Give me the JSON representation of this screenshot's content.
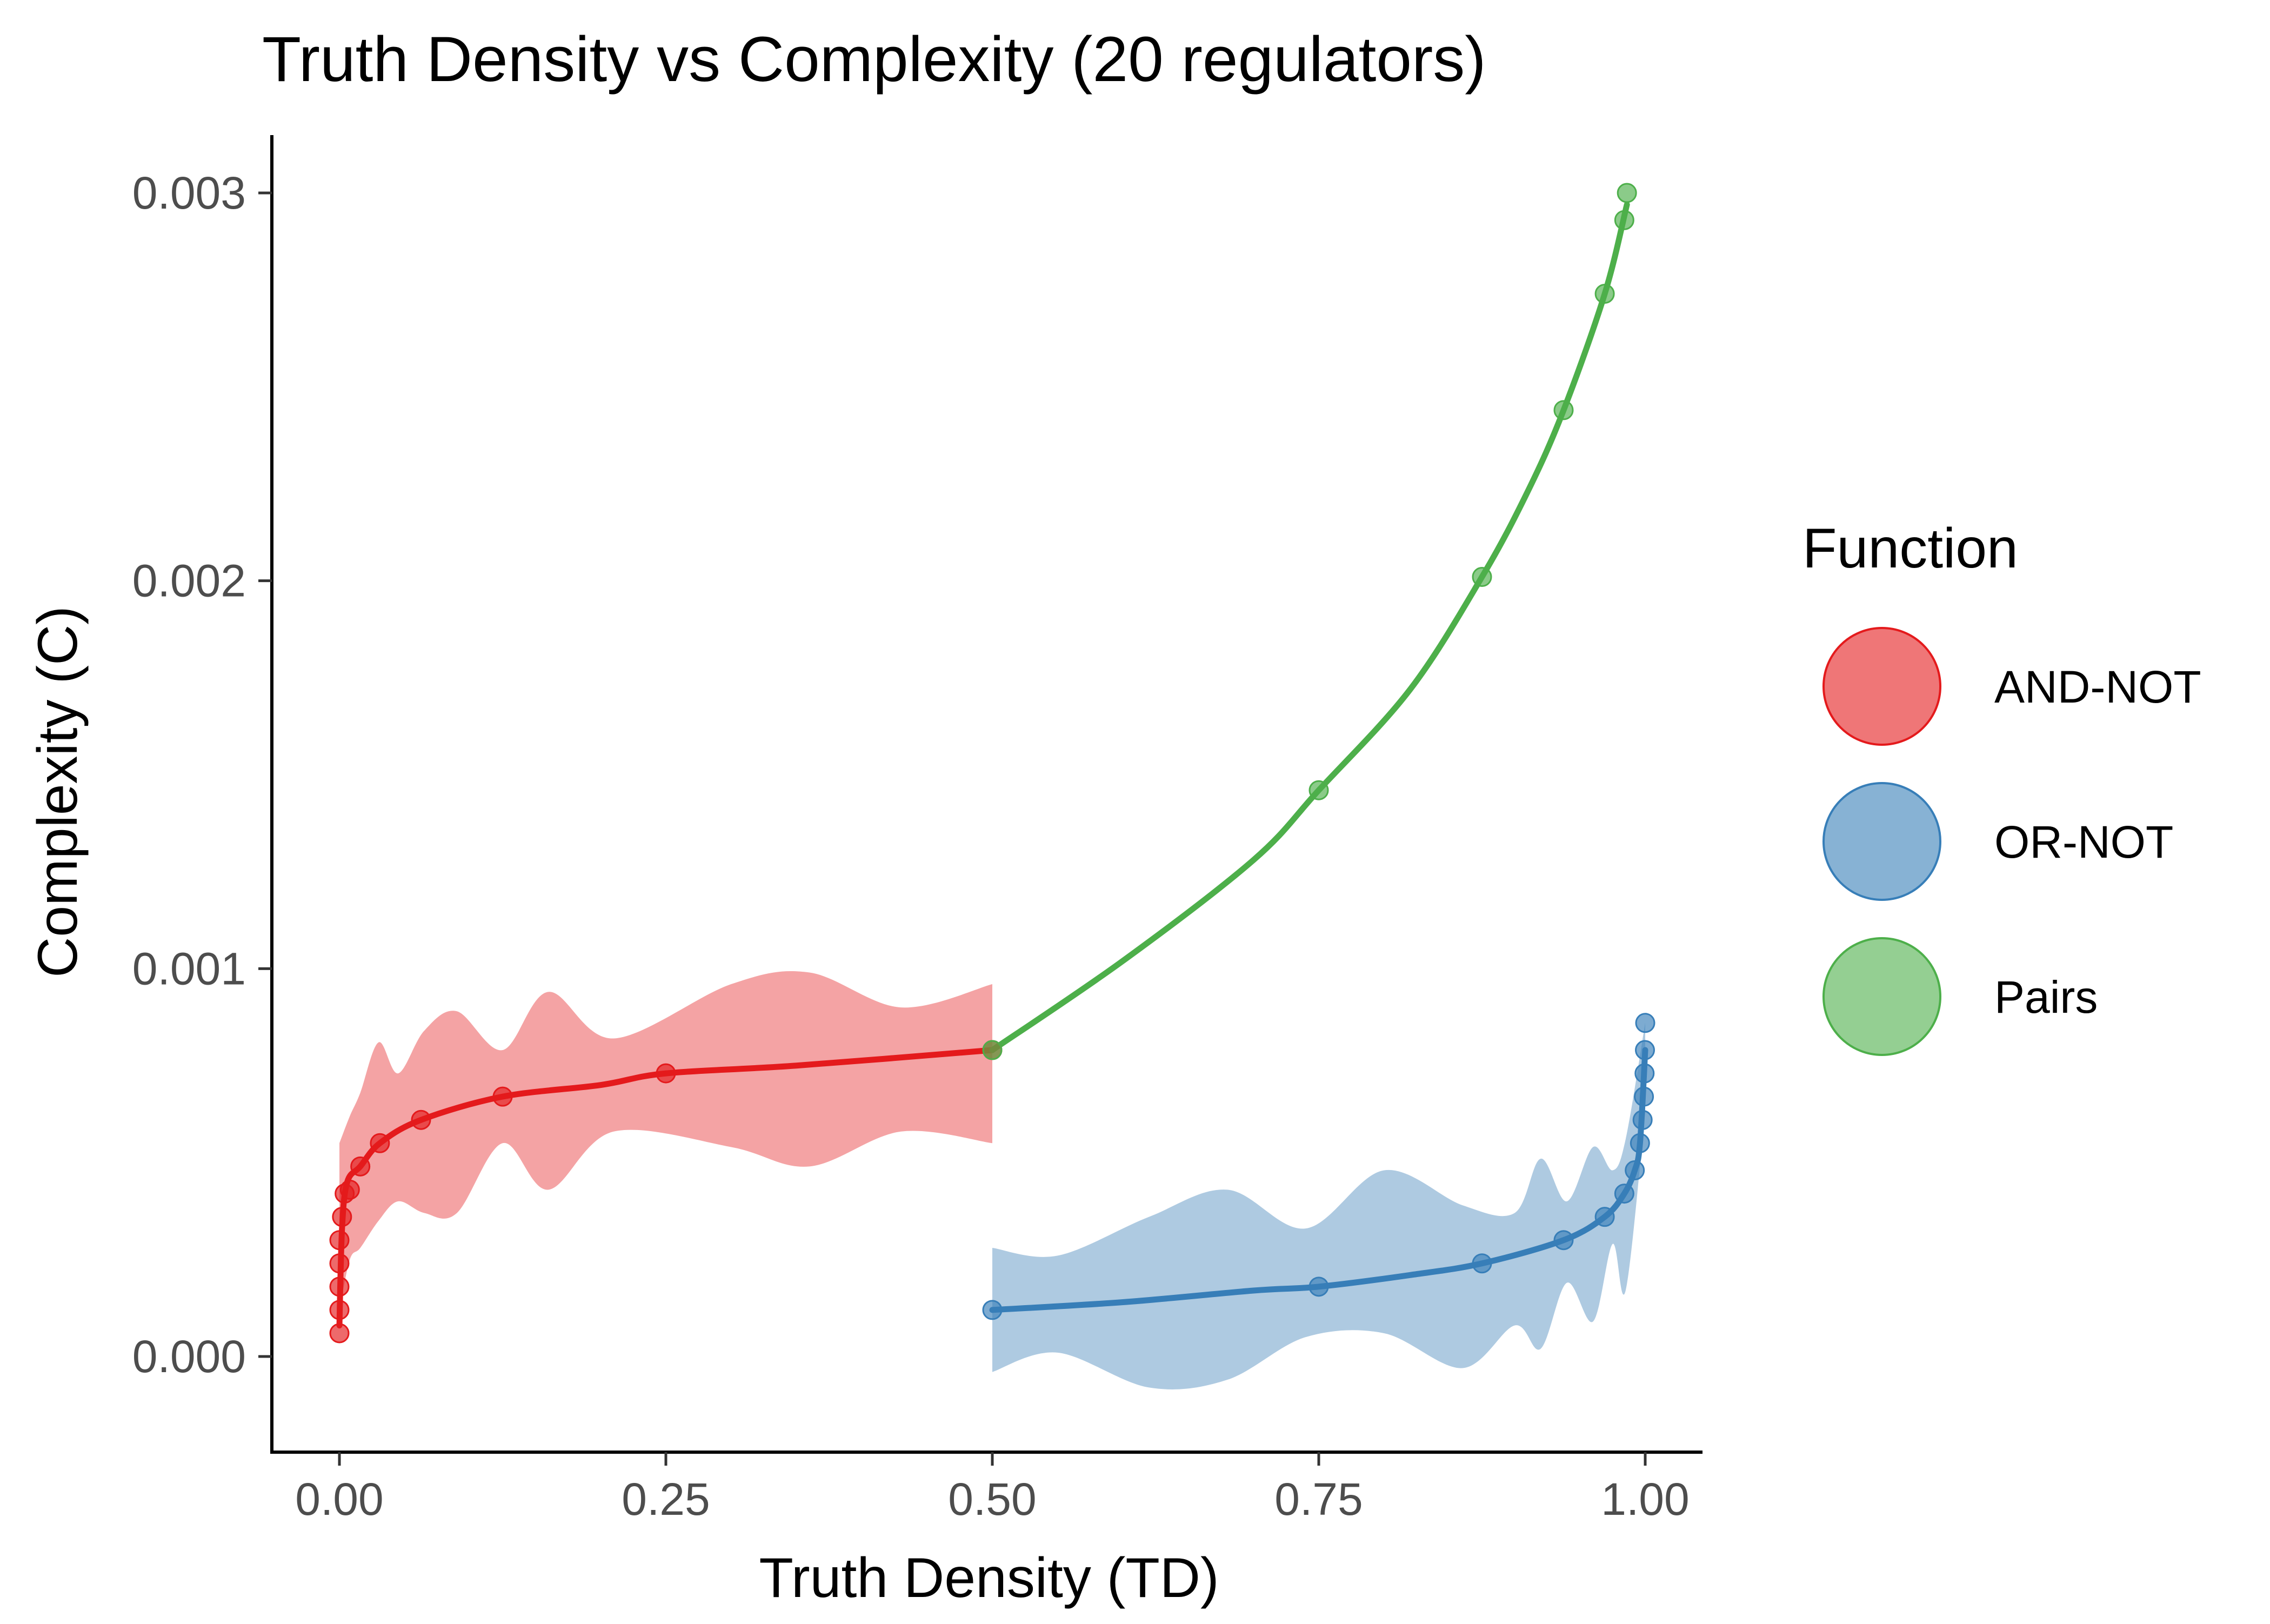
{
  "chart_data": {
    "type": "line",
    "title": "Truth Density vs Complexity (20 regulators)",
    "xlabel": "Truth Density (TD)",
    "ylabel": "Complexity (C)",
    "xlim": [
      -0.05,
      1.05
    ],
    "ylim": [
      -0.00025,
      0.00315
    ],
    "x_ticks": [
      0.0,
      0.25,
      0.5,
      0.75,
      1.0
    ],
    "x_tick_labels": [
      "0.00",
      "0.25",
      "0.50",
      "0.75",
      "1.00"
    ],
    "y_ticks": [
      0.0,
      0.001,
      0.002,
      0.003
    ],
    "y_tick_labels": [
      "0.000",
      "0.001",
      "0.002",
      "0.003"
    ],
    "grid": false,
    "legend": {
      "title": "Function",
      "placement": "right",
      "entries": [
        "AND-NOT",
        "OR-NOT",
        "Pairs"
      ]
    },
    "series": [
      {
        "name": "AND-NOT",
        "color": "#e41a1c",
        "band_color": "#f4a3a4",
        "points": [
          [
            0.0,
            6e-05
          ],
          [
            0.0,
            0.00012
          ],
          [
            0.0,
            0.00018
          ],
          [
            0.0,
            0.00024
          ],
          [
            0.0,
            0.0003
          ],
          [
            0.002,
            0.00036
          ],
          [
            0.004,
            0.00042
          ],
          [
            0.008,
            0.00043
          ],
          [
            0.016,
            0.00049
          ],
          [
            0.031,
            0.00055
          ],
          [
            0.0625,
            0.00061
          ],
          [
            0.125,
            0.00067
          ],
          [
            0.25,
            0.00073
          ],
          [
            0.5,
            0.00079
          ]
        ],
        "smooth": [
          [
            0.0,
            8e-05
          ],
          [
            0.002,
            0.00033
          ],
          [
            0.006,
            0.00045
          ],
          [
            0.016,
            0.00049
          ],
          [
            0.031,
            0.00055
          ],
          [
            0.0625,
            0.00061
          ],
          [
            0.125,
            0.00067
          ],
          [
            0.2,
            0.0007
          ],
          [
            0.25,
            0.00073
          ],
          [
            0.35,
            0.00075
          ],
          [
            0.5,
            0.00079
          ]
        ],
        "band": [
          [
            0.0,
            0.00012,
            0.00055
          ],
          [
            0.008,
            0.00025,
            0.00062
          ],
          [
            0.016,
            0.00028,
            0.00068
          ],
          [
            0.03,
            0.00035,
            0.00081
          ],
          [
            0.045,
            0.0004,
            0.00073
          ],
          [
            0.065,
            0.00037,
            0.00084
          ],
          [
            0.09,
            0.00037,
            0.00089
          ],
          [
            0.125,
            0.00055,
            0.00079
          ],
          [
            0.16,
            0.00043,
            0.00094
          ],
          [
            0.21,
            0.00058,
            0.00082
          ],
          [
            0.3,
            0.00054,
            0.00096
          ],
          [
            0.36,
            0.00049,
            0.00099
          ],
          [
            0.43,
            0.00058,
            0.0009
          ],
          [
            0.5,
            0.00055,
            0.00096
          ]
        ]
      },
      {
        "name": "OR-NOT",
        "color": "#377eb8",
        "band_color": "#aecae1",
        "points": [
          [
            0.5,
            0.00012
          ],
          [
            0.75,
            0.00018
          ],
          [
            0.875,
            0.00024
          ],
          [
            0.9375,
            0.0003
          ],
          [
            0.969,
            0.00036
          ],
          [
            0.984,
            0.00042
          ],
          [
            0.992,
            0.00048
          ],
          [
            0.996,
            0.00055
          ],
          [
            0.998,
            0.00061
          ],
          [
            0.999,
            0.00067
          ],
          [
            0.9995,
            0.00073
          ],
          [
            0.9998,
            0.00079
          ],
          [
            1.0,
            0.00086
          ]
        ],
        "smooth": [
          [
            0.5,
            0.00012
          ],
          [
            0.6,
            0.00014
          ],
          [
            0.7,
            0.00017
          ],
          [
            0.75,
            0.00018
          ],
          [
            0.82,
            0.00021
          ],
          [
            0.875,
            0.00024
          ],
          [
            0.9375,
            0.0003
          ],
          [
            0.969,
            0.00036
          ],
          [
            0.984,
            0.00042
          ],
          [
            0.992,
            0.00048
          ],
          [
            0.996,
            0.00055
          ],
          [
            1.0,
            0.00079
          ]
        ],
        "band": [
          [
            0.5,
            -4e-05,
            0.00028
          ],
          [
            0.55,
            1e-05,
            0.00026
          ],
          [
            0.62,
            -8e-05,
            0.00036
          ],
          [
            0.68,
            -6e-05,
            0.00043
          ],
          [
            0.74,
            5e-05,
            0.00033
          ],
          [
            0.8,
            6e-05,
            0.00048
          ],
          [
            0.86,
            -3e-05,
            0.00039
          ],
          [
            0.9,
            8e-05,
            0.00037
          ],
          [
            0.92,
            2e-05,
            0.00051
          ],
          [
            0.94,
            0.00019,
            0.0004
          ],
          [
            0.96,
            9e-05,
            0.00054
          ],
          [
            0.975,
            0.00029,
            0.00048
          ],
          [
            0.985,
            0.00017,
            0.00056
          ],
          [
            1.0,
            0.00063,
            0.00086
          ]
        ]
      },
      {
        "name": "Pairs",
        "color": "#4daf4a",
        "band_color": "#a6d8a4",
        "points": [
          [
            0.5,
            0.00079
          ],
          [
            0.75,
            0.00146
          ],
          [
            0.875,
            0.00201
          ],
          [
            0.9375,
            0.00244
          ],
          [
            0.969,
            0.00274
          ],
          [
            0.984,
            0.00293
          ],
          [
            0.986,
            0.003
          ]
        ],
        "smooth": [
          [
            0.5,
            0.00079
          ],
          [
            0.6,
            0.00102
          ],
          [
            0.7,
            0.00128
          ],
          [
            0.75,
            0.00146
          ],
          [
            0.82,
            0.00172
          ],
          [
            0.875,
            0.00201
          ],
          [
            0.91,
            0.00223
          ],
          [
            0.9375,
            0.00244
          ],
          [
            0.969,
            0.00274
          ],
          [
            0.986,
            0.00297
          ]
        ],
        "band": []
      }
    ]
  }
}
